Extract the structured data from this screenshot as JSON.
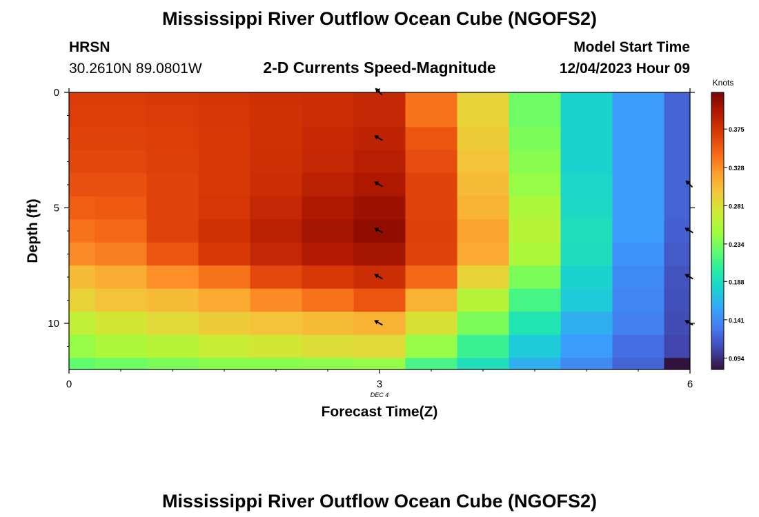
{
  "chart_data": {
    "type": "heatmap",
    "title": "Mississippi River Outflow Ocean Cube (NGOFS2)",
    "repeated_title": "Mississippi River Outflow Ocean Cube (NGOFS2)",
    "station": "HRSN",
    "coordinates": "30.2610N  89.0801W",
    "subtitle": "2-D Currents Speed-Magnitude",
    "model_start_label": "Model Start Time",
    "model_start_value": "12/04/2023 Hour 09",
    "xlabel": "Forecast Time(Z)",
    "ylabel": "Depth (ft)",
    "date_label": "DEC 4",
    "x_ticks": [
      "0",
      "3",
      "6"
    ],
    "y_ticks": [
      "0",
      "5",
      "10"
    ],
    "x_tick_values": [
      0,
      3,
      6
    ],
    "y_tick_values": [
      0,
      5,
      10
    ],
    "xlim": [
      0,
      6
    ],
    "ylim": [
      0,
      12
    ],
    "units": "Knots",
    "colorbar_ticks": [
      0.375,
      0.328,
      0.281,
      0.234,
      0.188,
      0.141,
      0.094
    ],
    "colorbar_tick_labels": [
      "0.375",
      "0.328",
      "0.281",
      "0.234",
      "0.188",
      "0.141",
      "0.094"
    ],
    "colorbar_range": [
      0.08,
      0.42
    ],
    "cell_edges_x": [
      0,
      0.25,
      0.75,
      1.25,
      1.75,
      2.25,
      2.75,
      3.25,
      3.75,
      4.25,
      4.75,
      5.25,
      5.75,
      6.0
    ],
    "cell_edges_y": [
      0,
      0.5,
      1.5,
      2.5,
      3.5,
      4.5,
      5.5,
      6.5,
      7.5,
      8.5,
      9.5,
      10.5,
      11.5,
      12.0
    ],
    "values": [
      [
        0.37,
        0.37,
        0.372,
        0.375,
        0.378,
        0.38,
        0.385,
        0.34,
        0.29,
        0.23,
        0.18,
        0.15,
        0.12
      ],
      [
        0.368,
        0.368,
        0.37,
        0.373,
        0.376,
        0.38,
        0.385,
        0.34,
        0.29,
        0.23,
        0.18,
        0.15,
        0.12
      ],
      [
        0.365,
        0.365,
        0.368,
        0.372,
        0.377,
        0.383,
        0.388,
        0.355,
        0.295,
        0.235,
        0.18,
        0.15,
        0.12
      ],
      [
        0.363,
        0.363,
        0.367,
        0.372,
        0.378,
        0.385,
        0.392,
        0.36,
        0.3,
        0.24,
        0.18,
        0.15,
        0.12
      ],
      [
        0.358,
        0.358,
        0.365,
        0.372,
        0.38,
        0.39,
        0.397,
        0.365,
        0.305,
        0.245,
        0.183,
        0.15,
        0.12
      ],
      [
        0.35,
        0.352,
        0.365,
        0.373,
        0.385,
        0.397,
        0.405,
        0.365,
        0.31,
        0.255,
        0.185,
        0.15,
        0.12
      ],
      [
        0.34,
        0.345,
        0.365,
        0.376,
        0.39,
        0.402,
        0.41,
        0.367,
        0.318,
        0.26,
        0.19,
        0.15,
        0.118
      ],
      [
        0.33,
        0.335,
        0.355,
        0.372,
        0.385,
        0.395,
        0.402,
        0.365,
        0.315,
        0.255,
        0.188,
        0.145,
        0.115
      ],
      [
        0.305,
        0.312,
        0.328,
        0.34,
        0.362,
        0.372,
        0.38,
        0.345,
        0.29,
        0.235,
        0.18,
        0.14,
        0.112
      ],
      [
        0.29,
        0.3,
        0.305,
        0.315,
        0.33,
        0.34,
        0.355,
        0.31,
        0.26,
        0.215,
        0.175,
        0.138,
        0.11
      ],
      [
        0.265,
        0.275,
        0.285,
        0.295,
        0.3,
        0.305,
        0.31,
        0.28,
        0.235,
        0.195,
        0.16,
        0.135,
        0.108
      ],
      [
        0.245,
        0.255,
        0.26,
        0.27,
        0.275,
        0.282,
        0.285,
        0.245,
        0.21,
        0.175,
        0.15,
        0.125,
        0.105
      ],
      [
        0.225,
        0.23,
        0.235,
        0.24,
        0.24,
        0.242,
        0.245,
        0.215,
        0.19,
        0.16,
        0.14,
        0.12,
        0.08
      ]
    ],
    "arrows": [
      {
        "x": 3,
        "depth": 0,
        "angle": 225
      },
      {
        "x": 3,
        "depth": 2,
        "angle": 210
      },
      {
        "x": 3,
        "depth": 4,
        "angle": 210
      },
      {
        "x": 3,
        "depth": 6,
        "angle": 210
      },
      {
        "x": 3,
        "depth": 8,
        "angle": 210
      },
      {
        "x": 3,
        "depth": 10,
        "angle": 210
      },
      {
        "x": 6,
        "depth": 4,
        "angle": 225
      },
      {
        "x": 6,
        "depth": 6,
        "angle": 210
      },
      {
        "x": 6,
        "depth": 8,
        "angle": 210
      },
      {
        "x": 6,
        "depth": 10,
        "angle": 210
      }
    ],
    "colorbar_stops": [
      "#30123b",
      "#4145ab",
      "#4675ed",
      "#39a2fc",
      "#1bcfd4",
      "#24eca6",
      "#61fc6c",
      "#a4fc3b",
      "#d1e834",
      "#f3c63a",
      "#fe9b2d",
      "#f36315",
      "#d93806",
      "#b11901",
      "#7a0402"
    ]
  }
}
